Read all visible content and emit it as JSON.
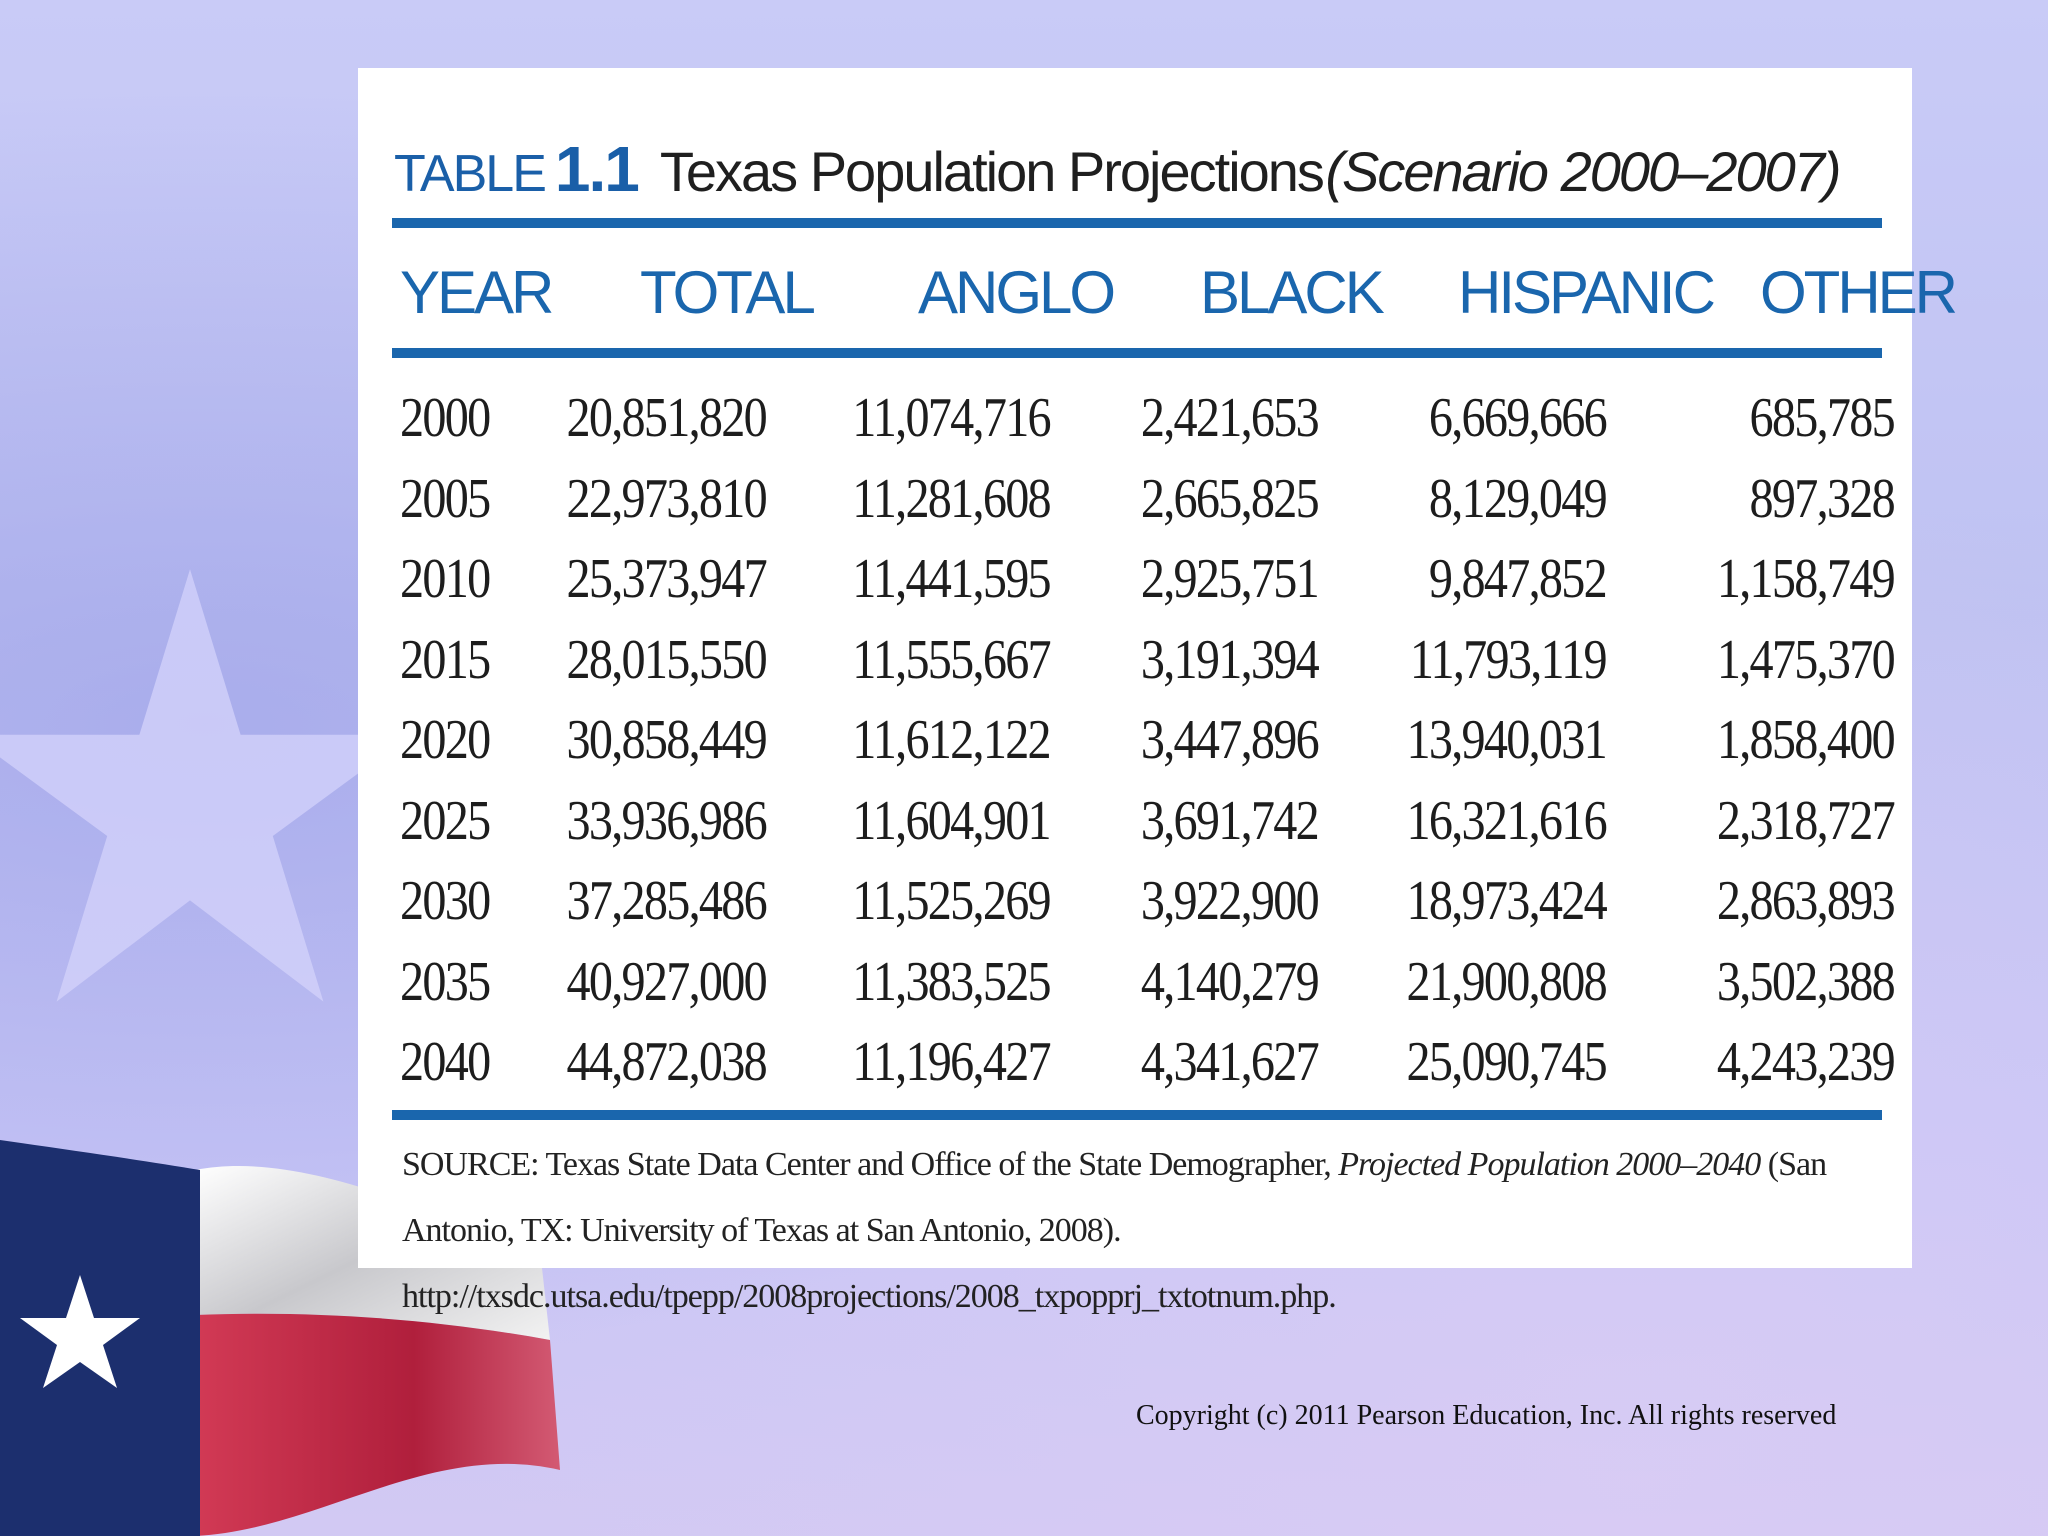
{
  "table": {
    "label_word": "TABLE",
    "label_number": "1.1",
    "title": "Texas Population Projections",
    "subtitle": "(Scenario 2000–2007)",
    "columns": [
      "YEAR",
      "TOTAL",
      "ANGLO",
      "BLACK",
      "HISPANIC",
      "OTHER"
    ],
    "rows": [
      [
        "2000",
        "20,851,820",
        "11,074,716",
        "2,421,653",
        "6,669,666",
        "685,785"
      ],
      [
        "2005",
        "22,973,810",
        "11,281,608",
        "2,665,825",
        "8,129,049",
        "897,328"
      ],
      [
        "2010",
        "25,373,947",
        "11,441,595",
        "2,925,751",
        "9,847,852",
        "1,158,749"
      ],
      [
        "2015",
        "28,015,550",
        "11,555,667",
        "3,191,394",
        "11,793,119",
        "1,475,370"
      ],
      [
        "2020",
        "30,858,449",
        "11,612,122",
        "3,447,896",
        "13,940,031",
        "1,858,400"
      ],
      [
        "2025",
        "33,936,986",
        "11,604,901",
        "3,691,742",
        "16,321,616",
        "2,318,727"
      ],
      [
        "2030",
        "37,285,486",
        "11,525,269",
        "3,922,900",
        "18,973,424",
        "2,863,893"
      ],
      [
        "2035",
        "40,927,000",
        "11,383,525",
        "4,140,279",
        "21,900,808",
        "3,502,388"
      ],
      [
        "2040",
        "44,872,038",
        "11,196,427",
        "4,341,627",
        "25,090,745",
        "4,243,239"
      ]
    ],
    "source_prefix": "SOURCE: Texas State Data Center and Office of the State Demographer, ",
    "source_title": "Projected Population 2000–2040",
    "source_suffix": " (San Antonio, TX: University of Texas at San Antonio, 2008). http://txsdc.utsa.edu/tpepp/2008projections/2008_txpopprj_txtotnum.php."
  },
  "footer": {
    "copyright": "Copyright (c) 2011 Pearson Education, Inc. All rights reserved"
  },
  "colors": {
    "accent_blue": "#1a66ad",
    "background": "#c9cbf7",
    "flag_blue": "#1c2f6e",
    "flag_red": "#c42a4a"
  }
}
